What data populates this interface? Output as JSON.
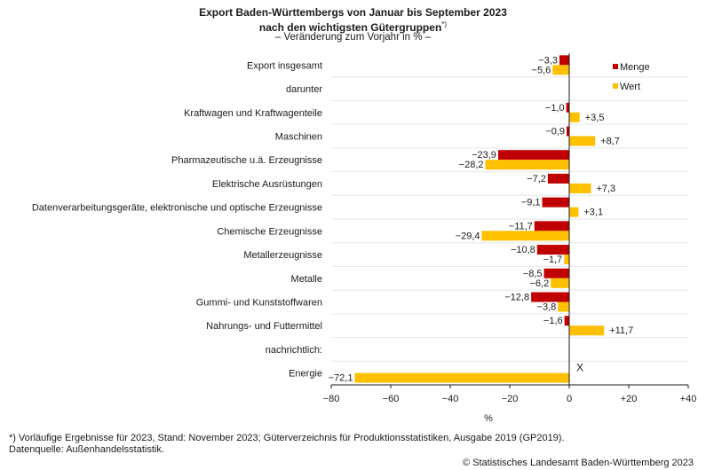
{
  "chart_data": {
    "type": "bar",
    "orientation": "horizontal",
    "title_line1": "Export Baden-Württembergs von Januar bis September 2023",
    "title_line2": "nach den wichtigsten Gütergruppen",
    "title_mark": "*)",
    "subtitle": "– Veränderung zum Vorjahr in % –",
    "xlabel": "%",
    "xlim": [
      -80,
      40
    ],
    "xticks": [
      -80,
      -60,
      -40,
      -20,
      0,
      20,
      40
    ],
    "xtick_labels": [
      "−80",
      "−60",
      "−40",
      "−20",
      "0",
      "+20",
      "+40"
    ],
    "categories": [
      "Export insgesamt",
      "darunter",
      "Kraftwagen und Kraftwagenteile",
      "Maschinen",
      "Pharmazeutische u.ä. Erzeugnisse",
      "Elektrische Ausrüstungen",
      "Datenverarbeitungsgeräte, elektronische und optische Erzeugnisse",
      "Chemische Erzeugnisse",
      "Metallerzeugnisse",
      "Metalle",
      "Gummi- und Kunststoffwaren",
      "Nahrungs- und Futtermittel",
      "nachrichtlich:",
      "Energie"
    ],
    "series": [
      {
        "name": "Menge",
        "color": "#c00000",
        "values": [
          -3.3,
          null,
          -1.0,
          -0.9,
          -23.9,
          -7.2,
          -9.1,
          -11.7,
          -10.8,
          -8.5,
          -12.8,
          -1.6,
          null,
          null
        ],
        "labels": [
          "−3,3",
          "",
          "−1,0",
          "−0,9",
          "−23,9",
          "−7,2",
          "−9,1",
          "−11,7",
          "−10,8",
          "−8,5",
          "−12,8",
          "−1,6",
          "",
          "X"
        ]
      },
      {
        "name": "Wert",
        "color": "#ffc000",
        "values": [
          -5.6,
          null,
          3.5,
          8.7,
          -28.2,
          7.3,
          3.1,
          -29.4,
          -1.7,
          -6.2,
          -3.8,
          11.7,
          null,
          -72.1
        ],
        "labels": [
          "−5,6",
          "",
          "+3,5",
          "+8,7",
          "−28,2",
          "+7,3",
          "+3,1",
          "−29,4",
          "−1,7",
          "−6,2",
          "−3,8",
          "+11,7",
          "",
          "−72,1"
        ]
      }
    ],
    "legend": [
      "Menge",
      "Wert"
    ],
    "legend_position": "top-right"
  },
  "footnote": "*) Vorläufige Ergebnisse für 2023, Stand: November 2023; Güterverzeichnis für Produktionsstatistiken, Ausgabe 2019 (GP2019).",
  "source": "Datenquelle: Außenhandelsstatistik.",
  "copyright": "© Statistisches Landesamt Baden-Württemberg 2023"
}
